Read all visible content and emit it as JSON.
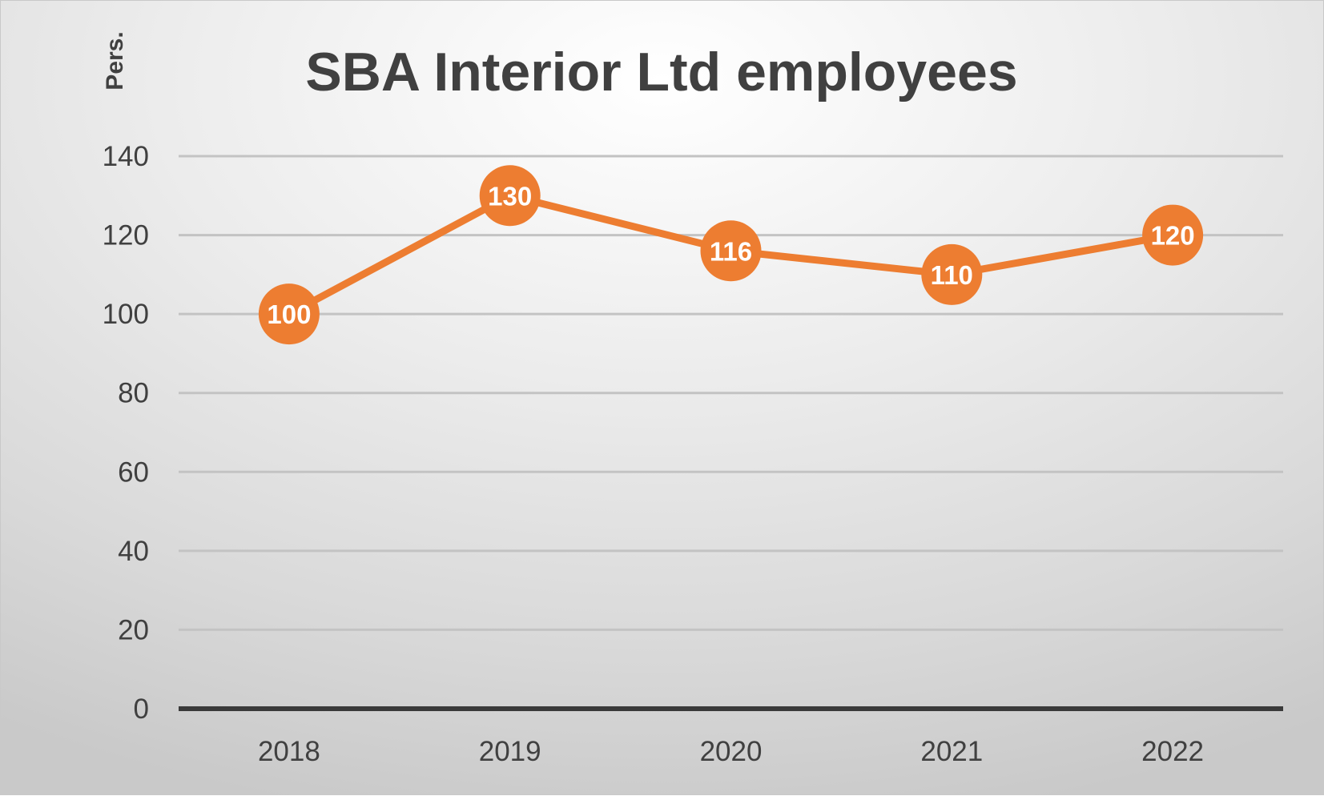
{
  "chart_data": {
    "type": "line",
    "title": "SBA Interior Ltd employees",
    "ylabel": "Pers.",
    "xlabel": "",
    "categories": [
      "2018",
      "2019",
      "2020",
      "2021",
      "2022"
    ],
    "series": [
      {
        "values": [
          100,
          130,
          116,
          110,
          120
        ],
        "color": "#ED7D31"
      }
    ],
    "data_labels": [
      "100",
      "130",
      "116",
      "110",
      "120"
    ],
    "ylim": [
      0,
      140
    ],
    "yticks": [
      "0",
      "20",
      "40",
      "60",
      "80",
      "100",
      "120",
      "140"
    ],
    "grid": true,
    "legend": "none"
  }
}
